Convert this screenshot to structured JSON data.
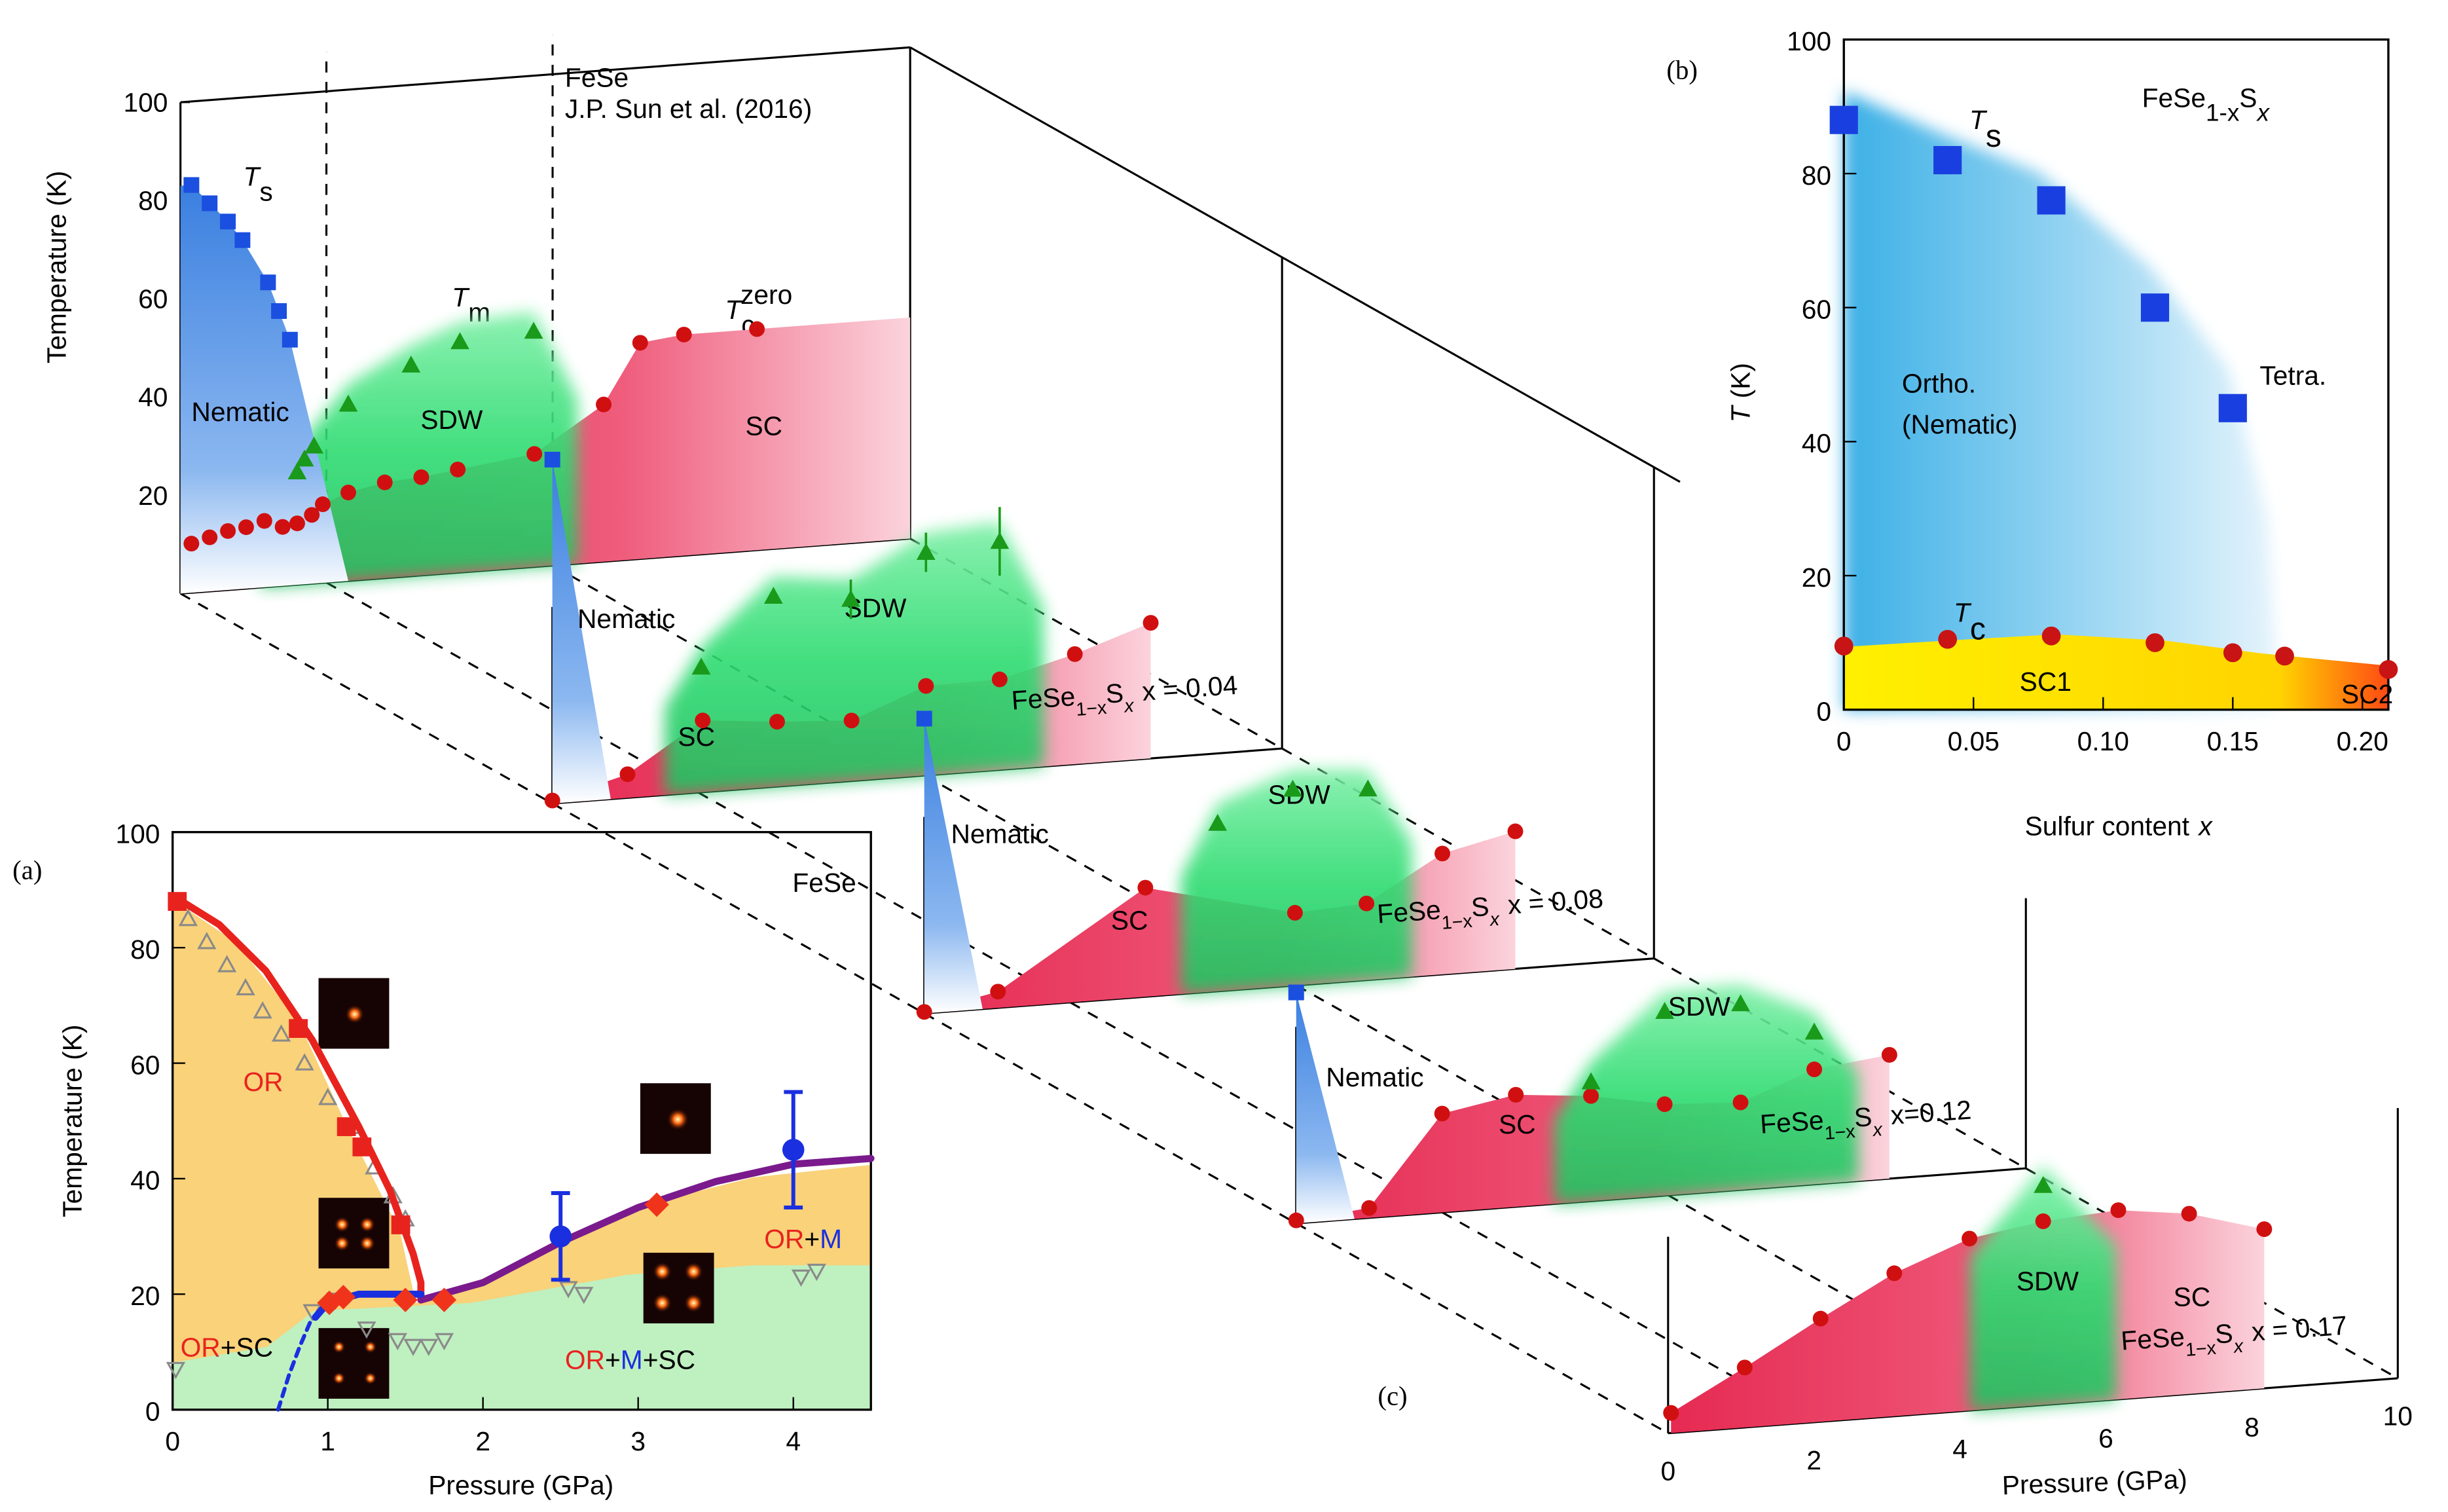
{
  "chart_data": [
    {
      "type": "phase-3d",
      "panel_label": "(c)",
      "y_label": "Temperature (K)",
      "x_label": "Pressure (GPa)",
      "xlim": [
        0,
        10
      ],
      "xticks": [
        0,
        2,
        4,
        6,
        8,
        10
      ],
      "ylim": [
        0,
        100
      ],
      "yticks": [
        20,
        40,
        60,
        80,
        100
      ],
      "note": [
        "FeSe",
        "J.P. Sun et al. (2016)"
      ],
      "legend": [
        {
          "text": "T",
          "sub": "s",
          "color": "#1a4fe0"
        },
        {
          "text": "T",
          "sub": "m",
          "color": "#1a9a1a"
        },
        {
          "text": "T",
          "sub": "c",
          "sup": "zero",
          "color": "#d01010"
        }
      ],
      "slices": [
        {
          "regions": [
            "Nematic",
            "SDW",
            "SC"
          ],
          "series": [
            {
              "marker": "square",
              "color": "#1a4fe0",
              "x": [
                0.15,
                0.4,
                0.65,
                0.85,
                1.2,
                1.35,
                1.5
              ],
              "values": [
                83,
                79,
                75,
                71,
                62,
                56,
                50
              ]
            },
            {
              "marker": "circle",
              "color": "#d01010",
              "x": [
                0.15,
                0.4,
                0.65,
                0.9,
                1.15,
                1.4,
                1.6,
                1.8,
                1.95,
                2.3,
                2.8,
                3.3,
                3.8,
                4.85,
                5.8,
                6.3,
                6.9,
                7.9
              ],
              "values": [
                10,
                11,
                12,
                12.5,
                13.5,
                12,
                12.5,
                14,
                16,
                18,
                19.5,
                20,
                21,
                23,
                32,
                44,
                45,
                45
              ]
            },
            {
              "marker": "triangle",
              "color": "#1a9a1a",
              "x": [
                1.6,
                1.7,
                1.83,
                2.3,
                3.16,
                3.83,
                4.84
              ],
              "values": [
                23,
                25.5,
                28,
                36,
                43,
                47,
                48
              ]
            }
          ]
        },
        {
          "formula": {
            "base": "FeSe",
            "sub": "1−x",
            "element": "S",
            "sub2": "x",
            "tail": "x = 0.04"
          },
          "regions": [
            "Nematic",
            "SDW",
            "SC"
          ],
          "series": [
            {
              "marker": "square",
              "color": "#1a4fe0",
              "x": [
                0
              ],
              "values": [
                70
              ]
            },
            {
              "marker": "circle",
              "color": "#d01010",
              "x": [
                0,
                1.03,
                2.06,
                3.08,
                4.1,
                5.12,
                6.13,
                7.16,
                8.2
              ],
              "values": [
                0.6,
                4.8,
                14.6,
                13.2,
                12.3,
                18.2,
                18.4,
                22.4,
                27.6
              ]
            },
            {
              "marker": "triangle",
              "color": "#1a9a1a",
              "x": [
                2.04,
                3.03,
                4.09,
                5.12,
                6.13
              ],
              "values": [
                25.5,
                38.8,
                37,
                45.4,
                46.5
              ],
              "errors": [
                null,
                null,
                4,
                4,
                7
              ]
            }
          ]
        },
        {
          "formula": {
            "base": "FeSe",
            "sub": "1−x",
            "element": "S",
            "sub2": "x",
            "tail": "x = 0.08"
          },
          "regions": [
            "Nematic",
            "SDW",
            "SC"
          ],
          "series": [
            {
              "marker": "square",
              "color": "#1a4fe0",
              "x": [
                0
              ],
              "values": [
                60
              ]
            },
            {
              "marker": "circle",
              "color": "#d01010",
              "x": [
                0,
                1.01,
                3.03,
                5.08,
                6.06,
                7.1,
                8.1
              ],
              "values": [
                0.3,
                3.3,
                22.2,
                14.8,
                15.6,
                24.6,
                28
              ]
            },
            {
              "marker": "triangle",
              "color": "#1a9a1a",
              "x": [
                4.02,
                5.05,
                6.08
              ],
              "values": [
                34.2,
                40,
                38.9
              ]
            }
          ]
        },
        {
          "formula": {
            "base": "FeSe",
            "sub": "1−x",
            "element": "S",
            "sub2": "x",
            "tail": "x=0.12"
          },
          "regions": [
            "Nematic",
            "SDW",
            "SC"
          ],
          "series": [
            {
              "marker": "square",
              "color": "#1a4fe0",
              "x": [
                0
              ],
              "values": [
                47
              ]
            },
            {
              "marker": "circle",
              "color": "#d01010",
              "x": [
                0,
                1,
                2,
                3.01,
                4.04,
                5.05,
                6.09,
                7.1,
                8.13
              ],
              "values": [
                0.6,
                2,
                20.1,
                22.8,
                21.4,
                18.6,
                17.8,
                23.4,
                25.2
              ]
            },
            {
              "marker": "triangle",
              "color": "#1a9a1a",
              "x": [
                4.04,
                5.05,
                6.09,
                7.1
              ],
              "values": [
                24.3,
                37.5,
                37.9,
                31
              ]
            }
          ]
        },
        {
          "formula": {
            "base": "FeSe",
            "sub": "1−x",
            "element": "S",
            "sub2": "x",
            "tail": "x = 0.17"
          },
          "regions": [
            "SDW",
            "SC"
          ],
          "series": [
            {
              "marker": "circle",
              "color": "#d01010",
              "x": [
                0.04,
                1.05,
                2.09,
                3.1,
                4.13,
                5.14,
                6.17,
                7.14,
                8.17
              ],
              "values": [
                4.1,
                12.2,
                21,
                29.1,
                35,
                37.4,
                38.5,
                36.7,
                32.4
              ]
            },
            {
              "marker": "triangle",
              "color": "#1a9a1a",
              "x": [
                5.14
              ],
              "values": [
                44.7
              ]
            }
          ]
        }
      ]
    },
    {
      "type": "scatter",
      "panel_label": "(b)",
      "title": {
        "base": "FeSe",
        "sub": "1-x",
        "element": "S",
        "sub2": "x"
      },
      "y_label": {
        "symbol": "T",
        "unit": "(K)"
      },
      "x_label": {
        "text": "Sulfur content",
        "symbol": "x"
      },
      "xlim": [
        0,
        0.21
      ],
      "xticks": [
        0,
        0.05,
        {
          "value": 0.1,
          "label": "0.10"
        },
        0.15,
        {
          "value": 0.2,
          "label": "0.20"
        }
      ],
      "ylim": [
        0,
        100
      ],
      "yticks": [
        0,
        20,
        40,
        60,
        80,
        100
      ],
      "annotations": [
        "Ortho.",
        "(Nematic)",
        "Tetra.",
        "SC1",
        "SC2"
      ],
      "series": [
        {
          "marker": "square",
          "color": "#1a3fe0",
          "label": {
            "text": "T",
            "sub": "s"
          },
          "x": [
            0,
            0.04,
            0.08,
            0.12,
            0.15
          ],
          "values": [
            88,
            82,
            76,
            60,
            45
          ]
        },
        {
          "marker": "circle",
          "color": "#c81414",
          "label": {
            "text": "T",
            "sub": "c"
          },
          "x": [
            0,
            0.04,
            0.08,
            0.12,
            0.15,
            0.17,
            0.21
          ],
          "values": [
            9.5,
            10.5,
            11,
            10,
            8.5,
            8,
            6
          ]
        }
      ]
    },
    {
      "type": "scatter",
      "panel_label": "(a)",
      "title": "FeSe",
      "y_label": "Temperature (K)",
      "x_label": "Pressure (GPa)",
      "xlim": [
        0,
        4.5
      ],
      "xticks": [
        0,
        1,
        2,
        3,
        4
      ],
      "ylim": [
        0,
        100
      ],
      "yticks": [
        0,
        20,
        40,
        60,
        80,
        100
      ],
      "annotations": [
        [
          {
            "text": "OR",
            "color": "#e8231e"
          }
        ],
        [
          {
            "text": "OR",
            "color": "#e8231e"
          },
          {
            "text": "+",
            "color": "#000000"
          },
          {
            "text": "M",
            "color": "#1a2fe0"
          }
        ],
        [
          {
            "text": "OR",
            "color": "#e8231e"
          },
          {
            "text": "+SC",
            "color": "#000000"
          }
        ],
        [
          {
            "text": "OR",
            "color": "#e8231e"
          },
          {
            "text": "+",
            "color": "#000000"
          },
          {
            "text": "M",
            "color": "#1a2fe0"
          },
          {
            "text": "+SC",
            "color": "#000000"
          }
        ]
      ],
      "series": [
        {
          "marker": "triangle-up",
          "color": "#8a8a8a",
          "x": [
            0.1,
            0.22,
            0.35,
            0.47,
            0.58,
            0.7,
            0.85,
            1.0,
            1.15,
            1.3,
            1.42,
            1.5
          ],
          "values": [
            85,
            81,
            77,
            73,
            69,
            65,
            60,
            54,
            49,
            42,
            37,
            33
          ]
        },
        {
          "marker": "triangle-down",
          "color": "#8a8a8a",
          "x": [
            0.02,
            0.9,
            1.05,
            1.25,
            1.45,
            1.55,
            1.65,
            1.75,
            2.55,
            2.65,
            4.05,
            4.15
          ],
          "values": [
            7,
            17,
            19,
            14,
            12,
            11,
            11,
            12,
            21,
            20,
            23,
            24
          ]
        },
        {
          "marker": "line",
          "color": "#e8231e",
          "x": [
            0,
            0.3,
            0.6,
            0.9,
            1.2,
            1.4,
            1.55,
            1.6,
            1.6
          ],
          "values": [
            89,
            84,
            76,
            64,
            49,
            38,
            27,
            22,
            19
          ]
        },
        {
          "marker": "line",
          "color": "#7a1a8c",
          "x": [
            1.6,
            2,
            2.5,
            3,
            3.5,
            4,
            4.5
          ],
          "values": [
            19,
            22,
            29,
            35,
            39.5,
            42.5,
            43.5
          ]
        },
        {
          "marker": "line",
          "color": "#1a2fe0",
          "x": [
            0.92,
            1.0,
            1.2,
            1.4,
            1.6
          ],
          "values": [
            16,
            18.5,
            20,
            20,
            20
          ]
        },
        {
          "marker": "line",
          "dashed": true,
          "color": "#1a2fe0",
          "x": [
            0.68,
            0.75,
            0.82,
            0.9
          ],
          "values": [
            0,
            6,
            11,
            16
          ]
        },
        {
          "marker": "square",
          "color": "#e8231e",
          "x": [
            0.03,
            0.81,
            1.12,
            1.22,
            1.47
          ],
          "values": [
            88,
            66,
            49,
            45.5,
            32
          ]
        },
        {
          "marker": "diamond",
          "color": "#f0341c",
          "x": [
            1.01,
            1.1,
            1.5,
            1.75,
            3.12
          ],
          "values": [
            18.5,
            19.5,
            19,
            19,
            35.5
          ]
        },
        {
          "marker": "circle",
          "color": "#1a2fe0",
          "x": [
            2.5,
            4.0
          ],
          "values": [
            30,
            45
          ],
          "errors": [
            7.5,
            10
          ]
        }
      ]
    }
  ]
}
